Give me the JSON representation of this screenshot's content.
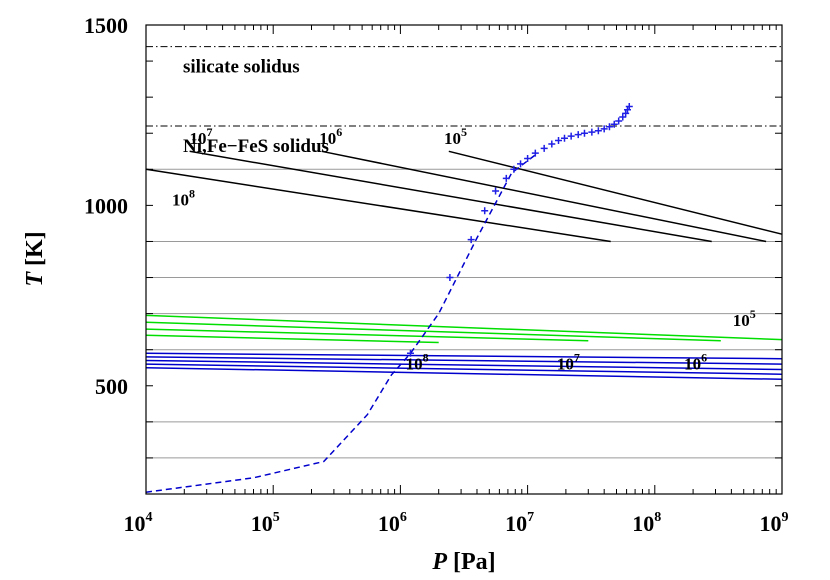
{
  "chart_data": {
    "type": "line",
    "xlabel_var": "P",
    "xlabel_unit": "[Pa]",
    "ylabel_var": "T",
    "ylabel_unit": "[K]",
    "xscale": "log",
    "xlim": [
      10000,
      1000000000
    ],
    "ylim": [
      200,
      1500
    ],
    "x_ticks": [
      {
        "base": "10",
        "exp": "4",
        "value": 10000
      },
      {
        "base": "10",
        "exp": "5",
        "value": 100000
      },
      {
        "base": "10",
        "exp": "6",
        "value": 1000000
      },
      {
        "base": "10",
        "exp": "7",
        "value": 10000000
      },
      {
        "base": "10",
        "exp": "8",
        "value": 100000000
      },
      {
        "base": "10",
        "exp": "9",
        "value": 1000000000
      }
    ],
    "y_ticks": [
      {
        "label": "500",
        "value": 500
      },
      {
        "label": "1000",
        "value": 1000
      },
      {
        "label": "1500",
        "value": 1500
      }
    ],
    "horizontal_gridlines": [
      300,
      400,
      600,
      700,
      800,
      900,
      1100
    ],
    "reference_lines": [
      {
        "label": "silicate solidus",
        "y": 1440,
        "style": "dash-dot",
        "color": "#000000"
      },
      {
        "label": "Ni,Fe−FeS solidus",
        "y": 1220,
        "style": "dash-dot",
        "color": "#000000"
      }
    ],
    "series_groups": [
      {
        "color": "#000000",
        "lines": [
          {
            "points": [
              [
                10000,
                1100
              ],
              [
                45000000,
                900
              ]
            ]
          },
          {
            "points": [
              [
                22000,
                1150
              ],
              [
                280000000,
                900
              ]
            ]
          },
          {
            "points": [
              [
                240000,
                1150
              ],
              [
                750000000,
                900
              ]
            ]
          },
          {
            "points": [
              [
                2400000,
                1150
              ],
              [
                1000000000,
                920
              ]
            ]
          }
        ]
      },
      {
        "color": "#00dd00",
        "lines": [
          {
            "points": [
              [
                10000,
                695
              ],
              [
                1000000000,
                628
              ]
            ]
          },
          {
            "points": [
              [
                10000,
                676
              ],
              [
                330000000,
                625
              ]
            ]
          },
          {
            "points": [
              [
                10000,
                657
              ],
              [
                30000000,
                625
              ]
            ]
          },
          {
            "points": [
              [
                10000,
                640
              ],
              [
                2000000,
                620
              ]
            ]
          }
        ]
      },
      {
        "color": "#0000cc",
        "lines": [
          {
            "points": [
              [
                10000,
                590
              ],
              [
                1000000000,
                575
              ]
            ]
          },
          {
            "points": [
              [
                10000,
                580
              ],
              [
                1000000000,
                560
              ]
            ]
          },
          {
            "points": [
              [
                10000,
                570
              ],
              [
                1000000000,
                545
              ]
            ]
          },
          {
            "points": [
              [
                10000,
                560
              ],
              [
                1000000000,
                532
              ]
            ]
          },
          {
            "points": [
              [
                10000,
                550
              ],
              [
                1000000000,
                518
              ]
            ]
          }
        ]
      }
    ],
    "curve_labels": [
      {
        "base": "10",
        "exp": "7",
        "at": [
          22000,
          1170
        ]
      },
      {
        "base": "10",
        "exp": "6",
        "at": [
          230000,
          1170
        ]
      },
      {
        "base": "10",
        "exp": "5",
        "at": [
          2200000,
          1170
        ]
      },
      {
        "base": "10",
        "exp": "8",
        "at": [
          16000,
          1000
        ]
      },
      {
        "base": "10",
        "exp": "5",
        "at": [
          410000000,
          665
        ]
      },
      {
        "base": "10",
        "exp": "8",
        "at": [
          1100000,
          545
        ]
      },
      {
        "base": "10",
        "exp": "7",
        "at": [
          17000000,
          545
        ]
      },
      {
        "base": "10",
        "exp": "6",
        "at": [
          170000000,
          545
        ]
      }
    ],
    "profile_dashed": {
      "color": "#0000cc",
      "points": [
        [
          10000,
          205
        ],
        [
          70000,
          245
        ],
        [
          250000,
          290
        ],
        [
          550000,
          420
        ],
        [
          850000,
          530
        ],
        [
          1200000,
          590
        ],
        [
          2000000,
          700
        ],
        [
          4000000,
          910
        ],
        [
          7500000,
          1090
        ],
        [
          12000000,
          1145
        ]
      ]
    },
    "profile_markers": {
      "color": "#1f1fe6",
      "marker": "plus",
      "points": [
        [
          1200000,
          590
        ],
        [
          2450000,
          800
        ],
        [
          3600000,
          905
        ],
        [
          4600000,
          985
        ],
        [
          5600000,
          1040
        ],
        [
          6800000,
          1075
        ],
        [
          7800000,
          1100
        ],
        [
          8800000,
          1115
        ],
        [
          10000000,
          1130
        ],
        [
          11500000,
          1145
        ],
        [
          13500000,
          1158
        ],
        [
          15500000,
          1170
        ],
        [
          17500000,
          1180
        ],
        [
          19500000,
          1186
        ],
        [
          22000000,
          1192
        ],
        [
          25000000,
          1196
        ],
        [
          28000000,
          1200
        ],
        [
          32000000,
          1203
        ],
        [
          36000000,
          1207
        ],
        [
          40000000,
          1212
        ],
        [
          44000000,
          1218
        ],
        [
          48000000,
          1225
        ],
        [
          52000000,
          1234
        ],
        [
          56000000,
          1245
        ],
        [
          59000000,
          1255
        ],
        [
          61000000,
          1265
        ],
        [
          63000000,
          1274
        ]
      ]
    }
  }
}
